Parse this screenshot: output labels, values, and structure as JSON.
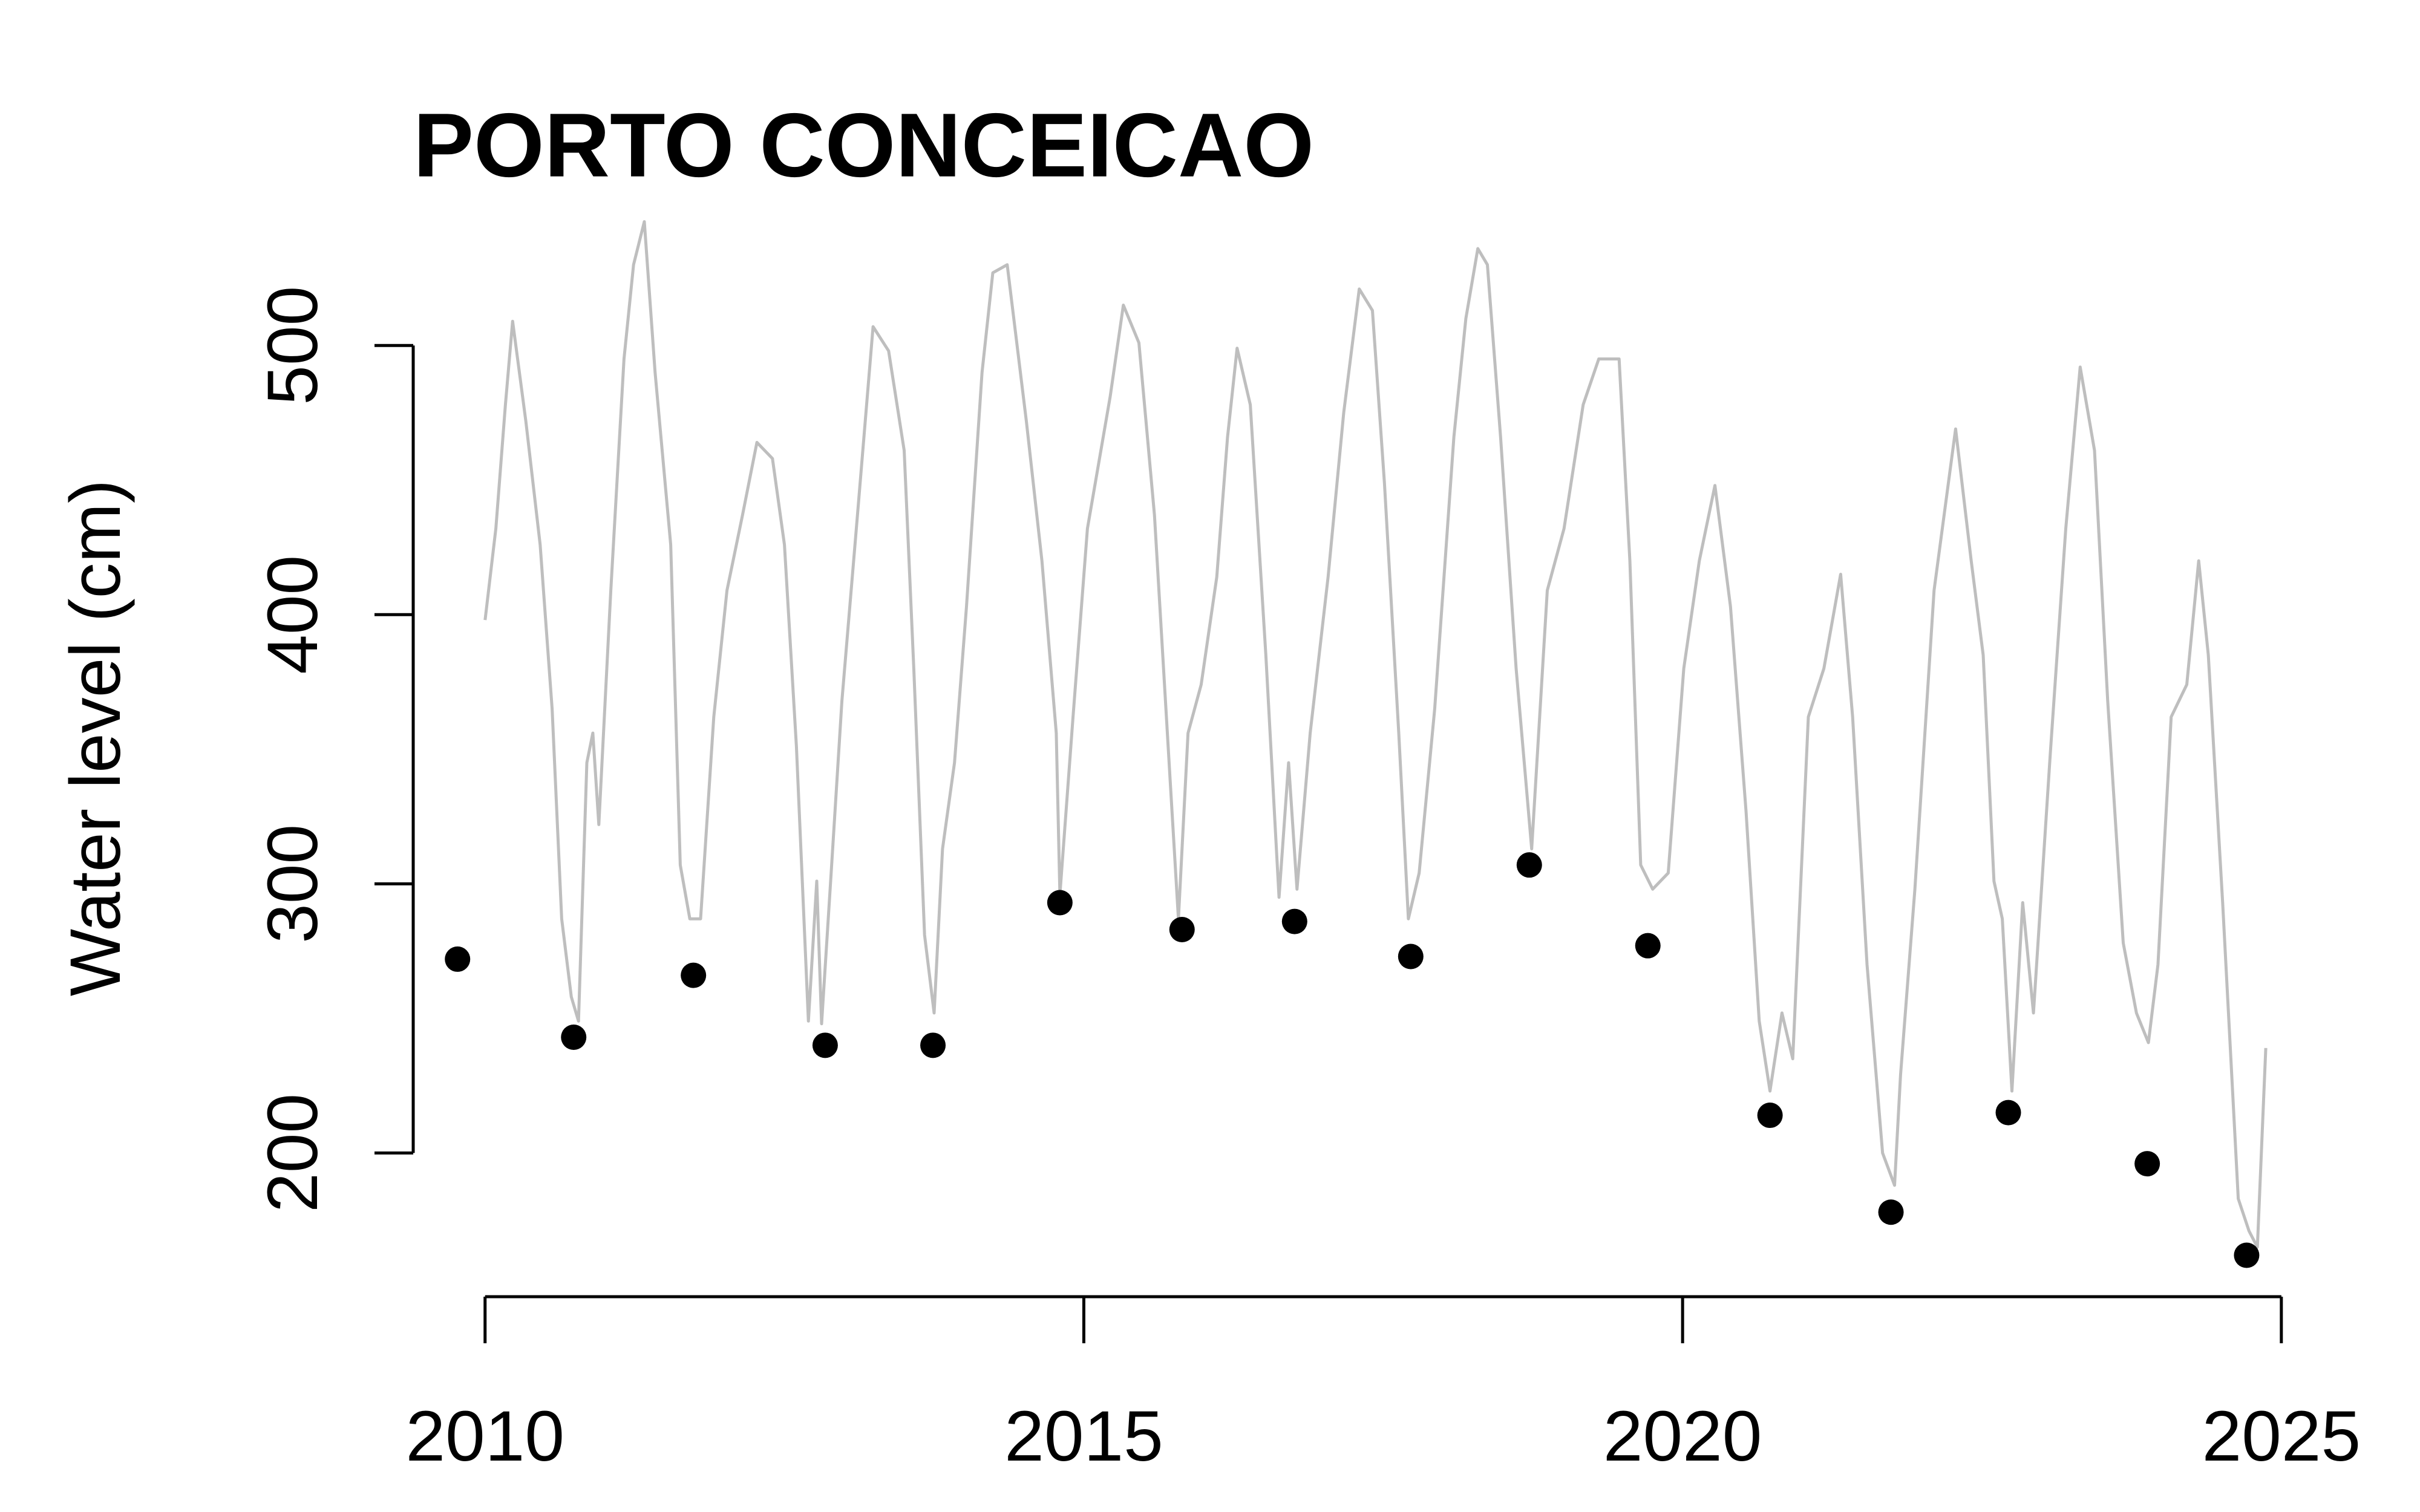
{
  "chart_data": {
    "type": "line",
    "title": "PORTO CONCEICAO",
    "y_label": "Water level (cm)",
    "xlim": [
      2009.4,
      2025.4
    ],
    "xticks": [
      2010,
      2015,
      2020,
      2025
    ],
    "ylim": [
      146.6,
      561.4
    ],
    "yticks": [
      200,
      300,
      400,
      500
    ],
    "grid": false,
    "line": {
      "color": "#bebebe",
      "x": [
        2010.0,
        2010.09,
        2010.17,
        2010.23,
        2010.34,
        2010.46,
        2010.56,
        2010.64,
        2010.72,
        2010.78,
        2010.85,
        2010.9,
        2010.95,
        2011.05,
        2011.16,
        2011.24,
        2011.33,
        2011.42,
        2011.55,
        2011.63,
        2011.71,
        2011.8,
        2011.91,
        2012.02,
        2012.15,
        2012.27,
        2012.4,
        2012.5,
        2012.6,
        2012.7,
        2012.77,
        2012.81,
        2012.89,
        2012.98,
        2013.11,
        2013.24,
        2013.37,
        2013.5,
        2013.58,
        2013.67,
        2013.75,
        2013.82,
        2013.92,
        2014.02,
        2014.15,
        2014.24,
        2014.36,
        2014.52,
        2014.65,
        2014.77,
        2014.8,
        2014.91,
        2015.03,
        2015.22,
        2015.33,
        2015.46,
        2015.59,
        2015.72,
        2015.79,
        2015.87,
        2015.98,
        2016.11,
        2016.2,
        2016.28,
        2016.39,
        2016.52,
        2016.63,
        2016.71,
        2016.78,
        2016.89,
        2017.04,
        2017.17,
        2017.3,
        2017.41,
        2017.51,
        2017.63,
        2017.71,
        2017.8,
        2017.93,
        2018.09,
        2018.19,
        2018.29,
        2018.37,
        2018.48,
        2018.61,
        2018.74,
        2018.87,
        2019.01,
        2019.17,
        2019.3,
        2019.47,
        2019.56,
        2019.65,
        2019.75,
        2019.88,
        2020.01,
        2020.14,
        2020.27,
        2020.4,
        2020.53,
        2020.64,
        2020.73,
        2020.83,
        2020.92,
        2021.05,
        2021.18,
        2021.32,
        2021.42,
        2021.54,
        2021.67,
        2021.77,
        2021.82,
        2021.94,
        2022.1,
        2022.28,
        2022.41,
        2022.51,
        2022.6,
        2022.67,
        2022.75,
        2022.84,
        2022.93,
        2023.07,
        2023.2,
        2023.32,
        2023.44,
        2023.55,
        2023.68,
        2023.79,
        2023.89,
        2023.97,
        2024.08,
        2024.21,
        2024.31,
        2024.39,
        2024.51,
        2024.64,
        2024.73,
        2024.8,
        2024.87
      ],
      "values": [
        398,
        432,
        478,
        509,
        472,
        426,
        365,
        287,
        258,
        249,
        345,
        356,
        322,
        409,
        495,
        530,
        546,
        490,
        426,
        307,
        287,
        287,
        362,
        409,
        437,
        464,
        458,
        426,
        351,
        249,
        301,
        248,
        304,
        368,
        437,
        507,
        498,
        461,
        380,
        281,
        252,
        313,
        345,
        403,
        490,
        527,
        530,
        472,
        420,
        356,
        296,
        362,
        432,
        481,
        515,
        501,
        437,
        339,
        287,
        356,
        374,
        414,
        466,
        499,
        478,
        385,
        295,
        345,
        298,
        356,
        414,
        475,
        521,
        513,
        449,
        356,
        287,
        304,
        365,
        466,
        510,
        536,
        530,
        466,
        380,
        313,
        409,
        432,
        478,
        495,
        495,
        420,
        307,
        298,
        304,
        380,
        420,
        448,
        403,
        327,
        249,
        223,
        252,
        235,
        362,
        380,
        415,
        362,
        270,
        200,
        188,
        229,
        298,
        409,
        469,
        420,
        385,
        301,
        287,
        223,
        293,
        252,
        348,
        432,
        492,
        461,
        368,
        278,
        252,
        241,
        270,
        362,
        374,
        420,
        385,
        293,
        183,
        171,
        165,
        239
      ]
    },
    "points": {
      "color": "#000000",
      "x": [
        2009.77,
        2010.74,
        2011.74,
        2012.84,
        2013.74,
        2014.8,
        2015.82,
        2016.76,
        2017.73,
        2018.72,
        2019.71,
        2020.73,
        2021.74,
        2022.72,
        2023.88,
        2024.71
      ],
      "values": [
        272,
        243,
        266,
        240,
        240,
        293,
        283,
        286,
        273,
        307,
        277,
        214,
        178,
        215,
        196,
        162
      ]
    }
  }
}
